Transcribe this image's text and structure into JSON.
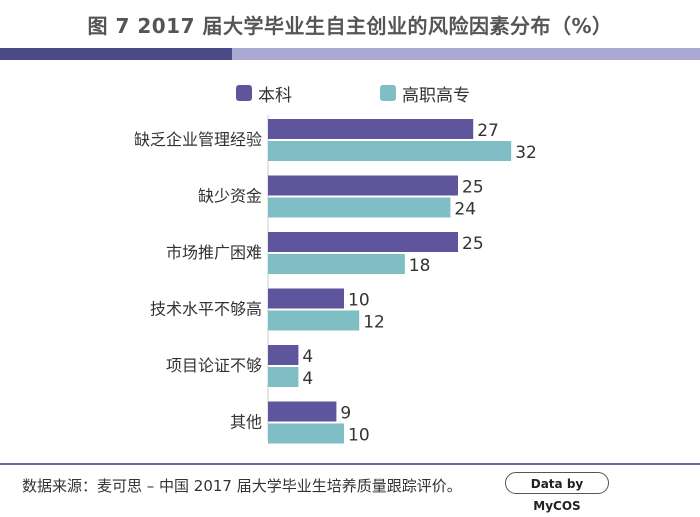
{
  "title": "图 7  2017 届大学毕业生自主创业的风险因素分布（%）",
  "colors": {
    "undergrad": "#5e559c",
    "vocational": "#7fbec4",
    "title_bar_dark": "#4a4a86",
    "title_bar_light": "#a9a9d2",
    "footer_line": "#6a64a4"
  },
  "chart_data": {
    "type": "bar",
    "orientation": "horizontal",
    "categories": [
      "缺乏企业管理经验",
      "缺少资金",
      "市场推广困难",
      "技术水平不够高",
      "项目论证不够",
      "其他"
    ],
    "series": [
      {
        "name": "本科",
        "values": [
          27,
          25,
          25,
          10,
          4,
          9
        ]
      },
      {
        "name": "高职高专",
        "values": [
          32,
          24,
          18,
          12,
          4,
          10
        ]
      }
    ],
    "legend_position": "top",
    "grid": false
  },
  "source": "数据来源：麦可思 – 中国 2017 届大学毕业生培养质量跟踪评价。",
  "brand": "Data by MyCOS"
}
